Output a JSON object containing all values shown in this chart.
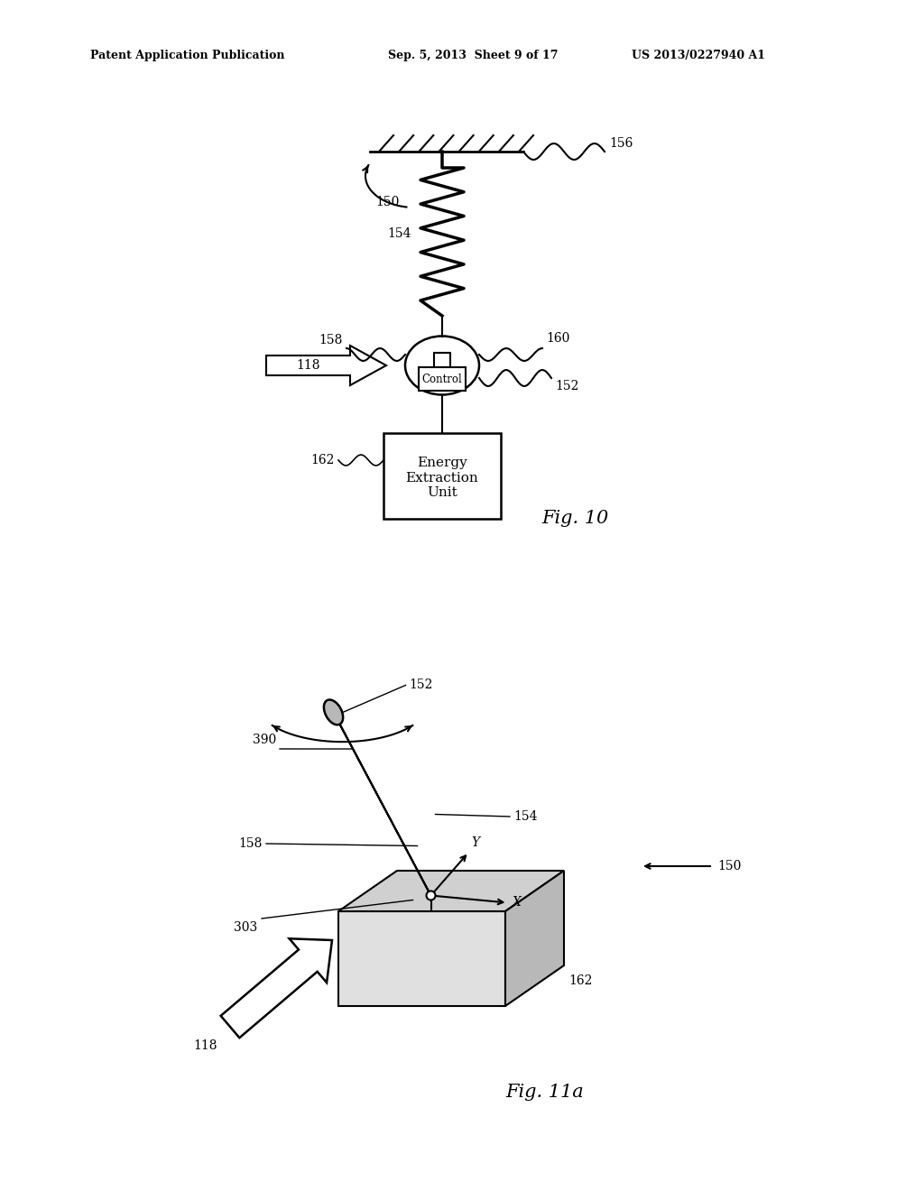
{
  "bg_color": "#ffffff",
  "line_color": "#000000",
  "header_left": "Patent Application Publication",
  "header_mid": "Sep. 5, 2013  Sheet 9 of 17",
  "header_right": "US 2013/0227940 A1",
  "fig10_label": "Fig. 10",
  "fig11a_label": "Fig. 11a"
}
